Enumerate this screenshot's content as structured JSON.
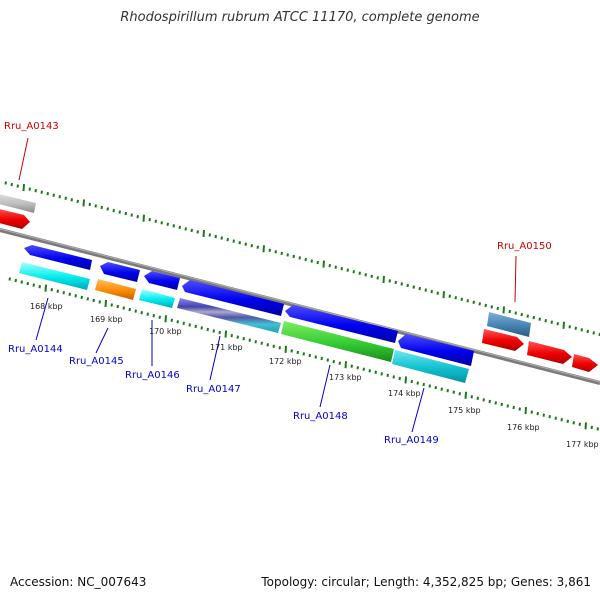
{
  "title": "Rhodospirillum rubrum ATCC 11170, complete genome",
  "accession": "Accession: NC_007643",
  "topology": "Topology: circular; Length: 4,352,825 bp; Genes: 3,861",
  "colors": {
    "backbone": "#808080",
    "tick_minor": "#1a7a1a",
    "tick_major": "#1a7a1a",
    "label_top": "#cc0000",
    "label_bottom": "#0000cc"
  },
  "tick_labels": [
    "168 kbp",
    "169 kbp",
    "170 kbp",
    "171 kbp",
    "172 kbp",
    "173 kbp",
    "174 kbp",
    "175 kbp",
    "176 kbp",
    "177 kbp"
  ],
  "gene_labels_top": [
    "Rru_A0143",
    "Rru_A0150"
  ],
  "gene_labels_bottom": [
    "Rru_A0144",
    "Rru_A0145",
    "Rru_A0146",
    "Rru_A0147",
    "Rru_A0148",
    "Rru_A0149"
  ]
}
